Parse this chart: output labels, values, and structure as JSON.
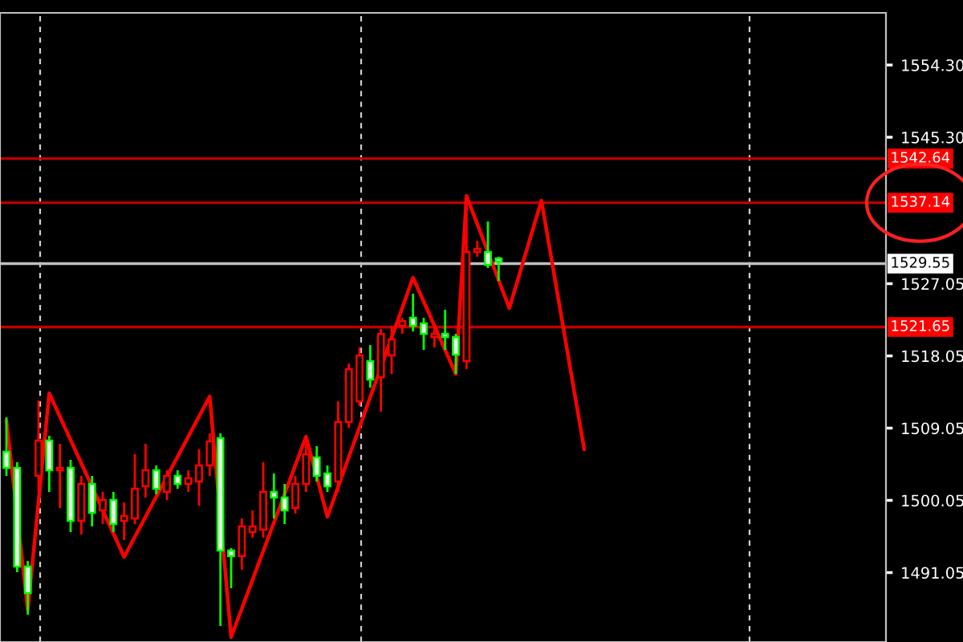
{
  "chart_data": {
    "type": "candlestick",
    "categories": [
      null,
      null,
      null,
      null,
      null,
      null,
      null,
      null,
      null,
      null,
      null,
      null,
      null,
      null,
      null,
      null,
      null,
      null,
      null,
      null,
      null,
      null,
      null,
      null,
      null,
      null,
      null,
      null,
      null,
      null,
      null,
      null,
      null,
      null,
      null,
      null,
      null,
      null,
      null,
      null,
      null,
      null,
      null,
      null,
      null,
      null,
      null,
      null,
      null,
      null,
      null,
      null,
      null,
      null,
      null,
      null,
      null,
      null,
      null,
      null,
      null,
      null,
      null,
      null,
      null,
      null,
      null,
      null,
      null,
      null,
      null,
      null,
      null,
      null,
      null,
      null,
      null,
      null,
      null,
      null,
      null,
      null,
      null
    ],
    "ohlc": [
      [
        1506.1,
        1510.4,
        1503.1,
        1504.1
      ],
      [
        1504.1,
        1504.8,
        1491.1,
        1491.8
      ],
      [
        1491.8,
        1492.5,
        1485.8,
        1488.5
      ],
      [
        1503.1,
        1512.5,
        1501.1,
        1507.5
      ],
      [
        1507.5,
        1508.1,
        1501.1,
        1503.8
      ],
      [
        1503.8,
        1507.1,
        1499.1,
        1504.1
      ],
      [
        1504.1,
        1505.1,
        1496.1,
        1497.5
      ],
      [
        1497.5,
        1503.1,
        1495.8,
        1502.1
      ],
      [
        1502.1,
        1503.1,
        1496.8,
        1498.5
      ],
      [
        1498.8,
        1501.1,
        1497.1,
        1500.1
      ],
      [
        1500.1,
        1501.1,
        1496.1,
        1497.1
      ],
      [
        1497.5,
        1499.8,
        1495.1,
        1498.1
      ],
      [
        1497.8,
        1505.8,
        1497.1,
        1501.5
      ],
      [
        1501.8,
        1507.1,
        1500.4,
        1503.8
      ],
      [
        1503.8,
        1504.4,
        1500.8,
        1501.5
      ],
      [
        1501.1,
        1503.8,
        1500.1,
        1503.1
      ],
      [
        1503.1,
        1503.8,
        1501.5,
        1502.1
      ],
      [
        1502.1,
        1503.8,
        1501.1,
        1502.8
      ],
      [
        1502.4,
        1506.4,
        1499.4,
        1504.4
      ],
      [
        1504.4,
        1508.4,
        1503.1,
        1507.4
      ],
      [
        1507.8,
        1508.4,
        1484.4,
        1493.8
      ],
      [
        1493.8,
        1494.1,
        1489.1,
        1493.1
      ],
      [
        1493.1,
        1497.8,
        1491.4,
        1496.8
      ],
      [
        1496.1,
        1498.8,
        1495.4,
        1496.8
      ],
      [
        1496.4,
        1504.8,
        1495.4,
        1501.1
      ],
      [
        1501.1,
        1503.4,
        1497.8,
        1500.4
      ],
      [
        1500.4,
        1502.1,
        1497.1,
        1498.8
      ],
      [
        1499.1,
        1503.1,
        1498.4,
        1502.1
      ],
      [
        1502.1,
        1507.1,
        1501.1,
        1505.8
      ],
      [
        1505.4,
        1506.8,
        1502.4,
        1503.1
      ],
      [
        1503.4,
        1504.4,
        1501.1,
        1501.8
      ],
      [
        1502.4,
        1512.4,
        1501.1,
        1509.8
      ],
      [
        1509.8,
        1517.1,
        1509.1,
        1516.4
      ],
      [
        1512.4,
        1519.1,
        1511.8,
        1518.1
      ],
      [
        1517.4,
        1519.4,
        1514.1,
        1515.1
      ],
      [
        1515.4,
        1521.4,
        1511.1,
        1520.8
      ],
      [
        1518.1,
        1521.8,
        1515.8,
        1520.1
      ],
      [
        1521.8,
        1522.8,
        1520.8,
        1522.4
      ],
      [
        1522.8,
        1525.8,
        1521.1,
        1521.8
      ],
      [
        1522.1,
        1522.8,
        1518.8,
        1520.8
      ],
      [
        1520.4,
        1521.8,
        1519.1,
        1520.8
      ],
      [
        1520.8,
        1523.8,
        1518.8,
        1520.4
      ],
      [
        1520.4,
        1520.8,
        1515.8,
        1518.2
      ],
      [
        1517.4,
        1538.0,
        1516.4,
        1531.0
      ],
      [
        1531.0,
        1532.4,
        1530.4,
        1531.4
      ],
      [
        1531.0,
        1534.8,
        1529.0,
        1529.4
      ],
      [
        1530.2,
        1530.4,
        1527.4,
        1529.8
      ],
      null,
      null,
      null,
      null,
      null,
      null,
      null,
      null,
      null,
      null,
      null,
      null,
      null,
      null,
      null,
      null,
      null,
      null,
      null,
      null,
      null,
      null,
      null,
      null,
      null,
      null,
      null,
      null,
      null,
      null,
      null,
      null,
      null,
      null,
      null,
      null
    ],
    "colors": [
      "#00ff00",
      "#00ff00",
      "#00ff00",
      "#ff0000",
      "#00ff00",
      "#ff0000",
      "#00ff00",
      "#ff0000",
      "#00ff00",
      "#ff0000",
      "#00ff00",
      "#ff0000",
      "#ff0000",
      "#ff0000",
      "#00ff00",
      "#ff0000",
      "#00ff00",
      "#ff0000",
      "#ff0000",
      "#ff0000",
      "#00ff00",
      "#00ff00",
      "#ff0000",
      "#ff0000",
      "#ff0000",
      "#00ff00",
      "#00ff00",
      "#ff0000",
      "#ff0000",
      "#00ff00",
      "#00ff00",
      "#ff0000",
      "#ff0000",
      "#ff0000",
      "#00ff00",
      "#ff0000",
      "#ff0000",
      "#ff0000",
      "#00ff00",
      "#00ff00",
      "#ff0000",
      "#00ff00",
      "#00ff00",
      "#ff0000",
      "#ff0000",
      "#00ff00",
      "#00ff00",
      null,
      null,
      null,
      null,
      null,
      null,
      null,
      null,
      null,
      null,
      null,
      null,
      null,
      null,
      null,
      null,
      null,
      null,
      null,
      null,
      null,
      null,
      null,
      null,
      null,
      null,
      null,
      null,
      null,
      null,
      null,
      null,
      null,
      null,
      null,
      null
    ],
    "series": [
      {
        "type": "line",
        "color": "#ff0000",
        "values": [
          1510.0,
          null,
          1486.4,
          null,
          1513.4,
          null,
          null,
          null,
          null,
          null,
          null,
          1493.0,
          null,
          null,
          null,
          null,
          null,
          null,
          null,
          1513.0,
          null,
          1483.0,
          null,
          null,
          null,
          null,
          null,
          null,
          1508.0,
          null,
          1498.0,
          null,
          null,
          null,
          null,
          null,
          null,
          null,
          1527.8,
          null,
          null,
          null,
          1515.8,
          1538.0,
          null,
          null,
          null,
          1524.0,
          null,
          null,
          1537.4,
          null,
          null,
          null,
          1506.4,
          null,
          null,
          null,
          null,
          null,
          null,
          null,
          null,
          null,
          null,
          null,
          null,
          null,
          null,
          null,
          null,
          null,
          null,
          null,
          null,
          null,
          null,
          null,
          null,
          null,
          null,
          null,
          null
        ]
      }
    ],
    "ylim": [
      1482.4,
      1560.8
    ],
    "yticks": [
      {
        "value": 1554.3,
        "label": "1554.30"
      },
      {
        "value": 1545.3,
        "label": "1545.30"
      },
      1527.05,
      1518.05,
      1509.05,
      1500.05,
      1491.05
    ],
    "ref_lines": [
      {
        "axis": "y",
        "value": 1542.64,
        "label": "1542.64",
        "color": "#c00000"
      },
      {
        "axis": "y",
        "value": 1537.14,
        "label": "1537.14",
        "color": "#c00000"
      },
      {
        "axis": "y",
        "value": 1529.55,
        "label": "1529.55",
        "color": "#c0c0c0"
      },
      {
        "axis": "y",
        "value": 1521.65,
        "label": "1521.65",
        "color": "#c00000"
      }
    ],
    "tick_labels": "y",
    "grid": false,
    "legend": false
  }
}
